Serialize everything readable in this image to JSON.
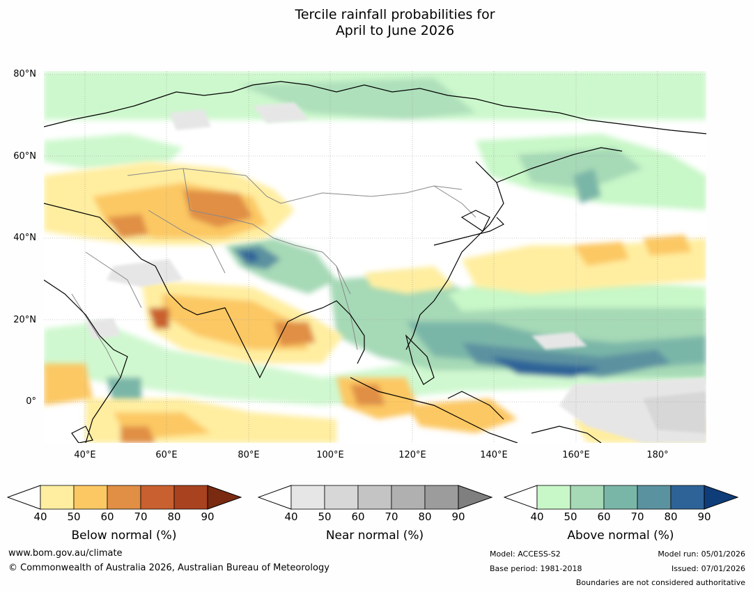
{
  "title": {
    "line1": "Tercile rainfall probabilities for",
    "line2": "April to June 2026"
  },
  "map": {
    "lat_labels": [
      "80°N",
      "60°N",
      "40°N",
      "20°N",
      "0°"
    ],
    "lon_labels": [
      "40°E",
      "60°E",
      "80°E",
      "100°E",
      "120°E",
      "140°E",
      "160°E",
      "180°"
    ],
    "extent": {
      "lon_min": 30,
      "lon_max": 192,
      "lat_min": -10,
      "lat_max": 81
    }
  },
  "legends": {
    "below": {
      "label": "Below normal (%)",
      "ticks": [
        "40",
        "50",
        "60",
        "70",
        "80",
        "90"
      ],
      "colors": [
        "#ffeea0",
        "#fcc863",
        "#e08f45",
        "#c9602f",
        "#a8421f",
        "#7a2a10"
      ]
    },
    "near": {
      "label": "Near normal (%)",
      "ticks": [
        "40",
        "50",
        "60",
        "70",
        "80",
        "90"
      ],
      "colors": [
        "#e6e6e6",
        "#d7d7d7",
        "#c4c4c4",
        "#b0b0b0",
        "#9c9c9c",
        "#7f7f7f"
      ]
    },
    "above": {
      "label": "Above normal (%)",
      "ticks": [
        "40",
        "50",
        "60",
        "70",
        "80",
        "90"
      ],
      "colors": [
        "#c8f7c8",
        "#a6d9b6",
        "#7ab6a8",
        "#5b92a0",
        "#2e6398",
        "#0f3d7a"
      ]
    }
  },
  "footer": {
    "website": "www.bom.gov.au/climate",
    "copyright": "© Commonwealth of Australia 2026, Australian Bureau of Meteorology",
    "model": "Model: ACCESS-S2",
    "base_period": "Base period: 1981-2018",
    "model_run": "Model run: 05/01/2026",
    "issued": "Issued: 07/01/2026",
    "disclaimer": "Boundaries are not considered authoritative"
  }
}
